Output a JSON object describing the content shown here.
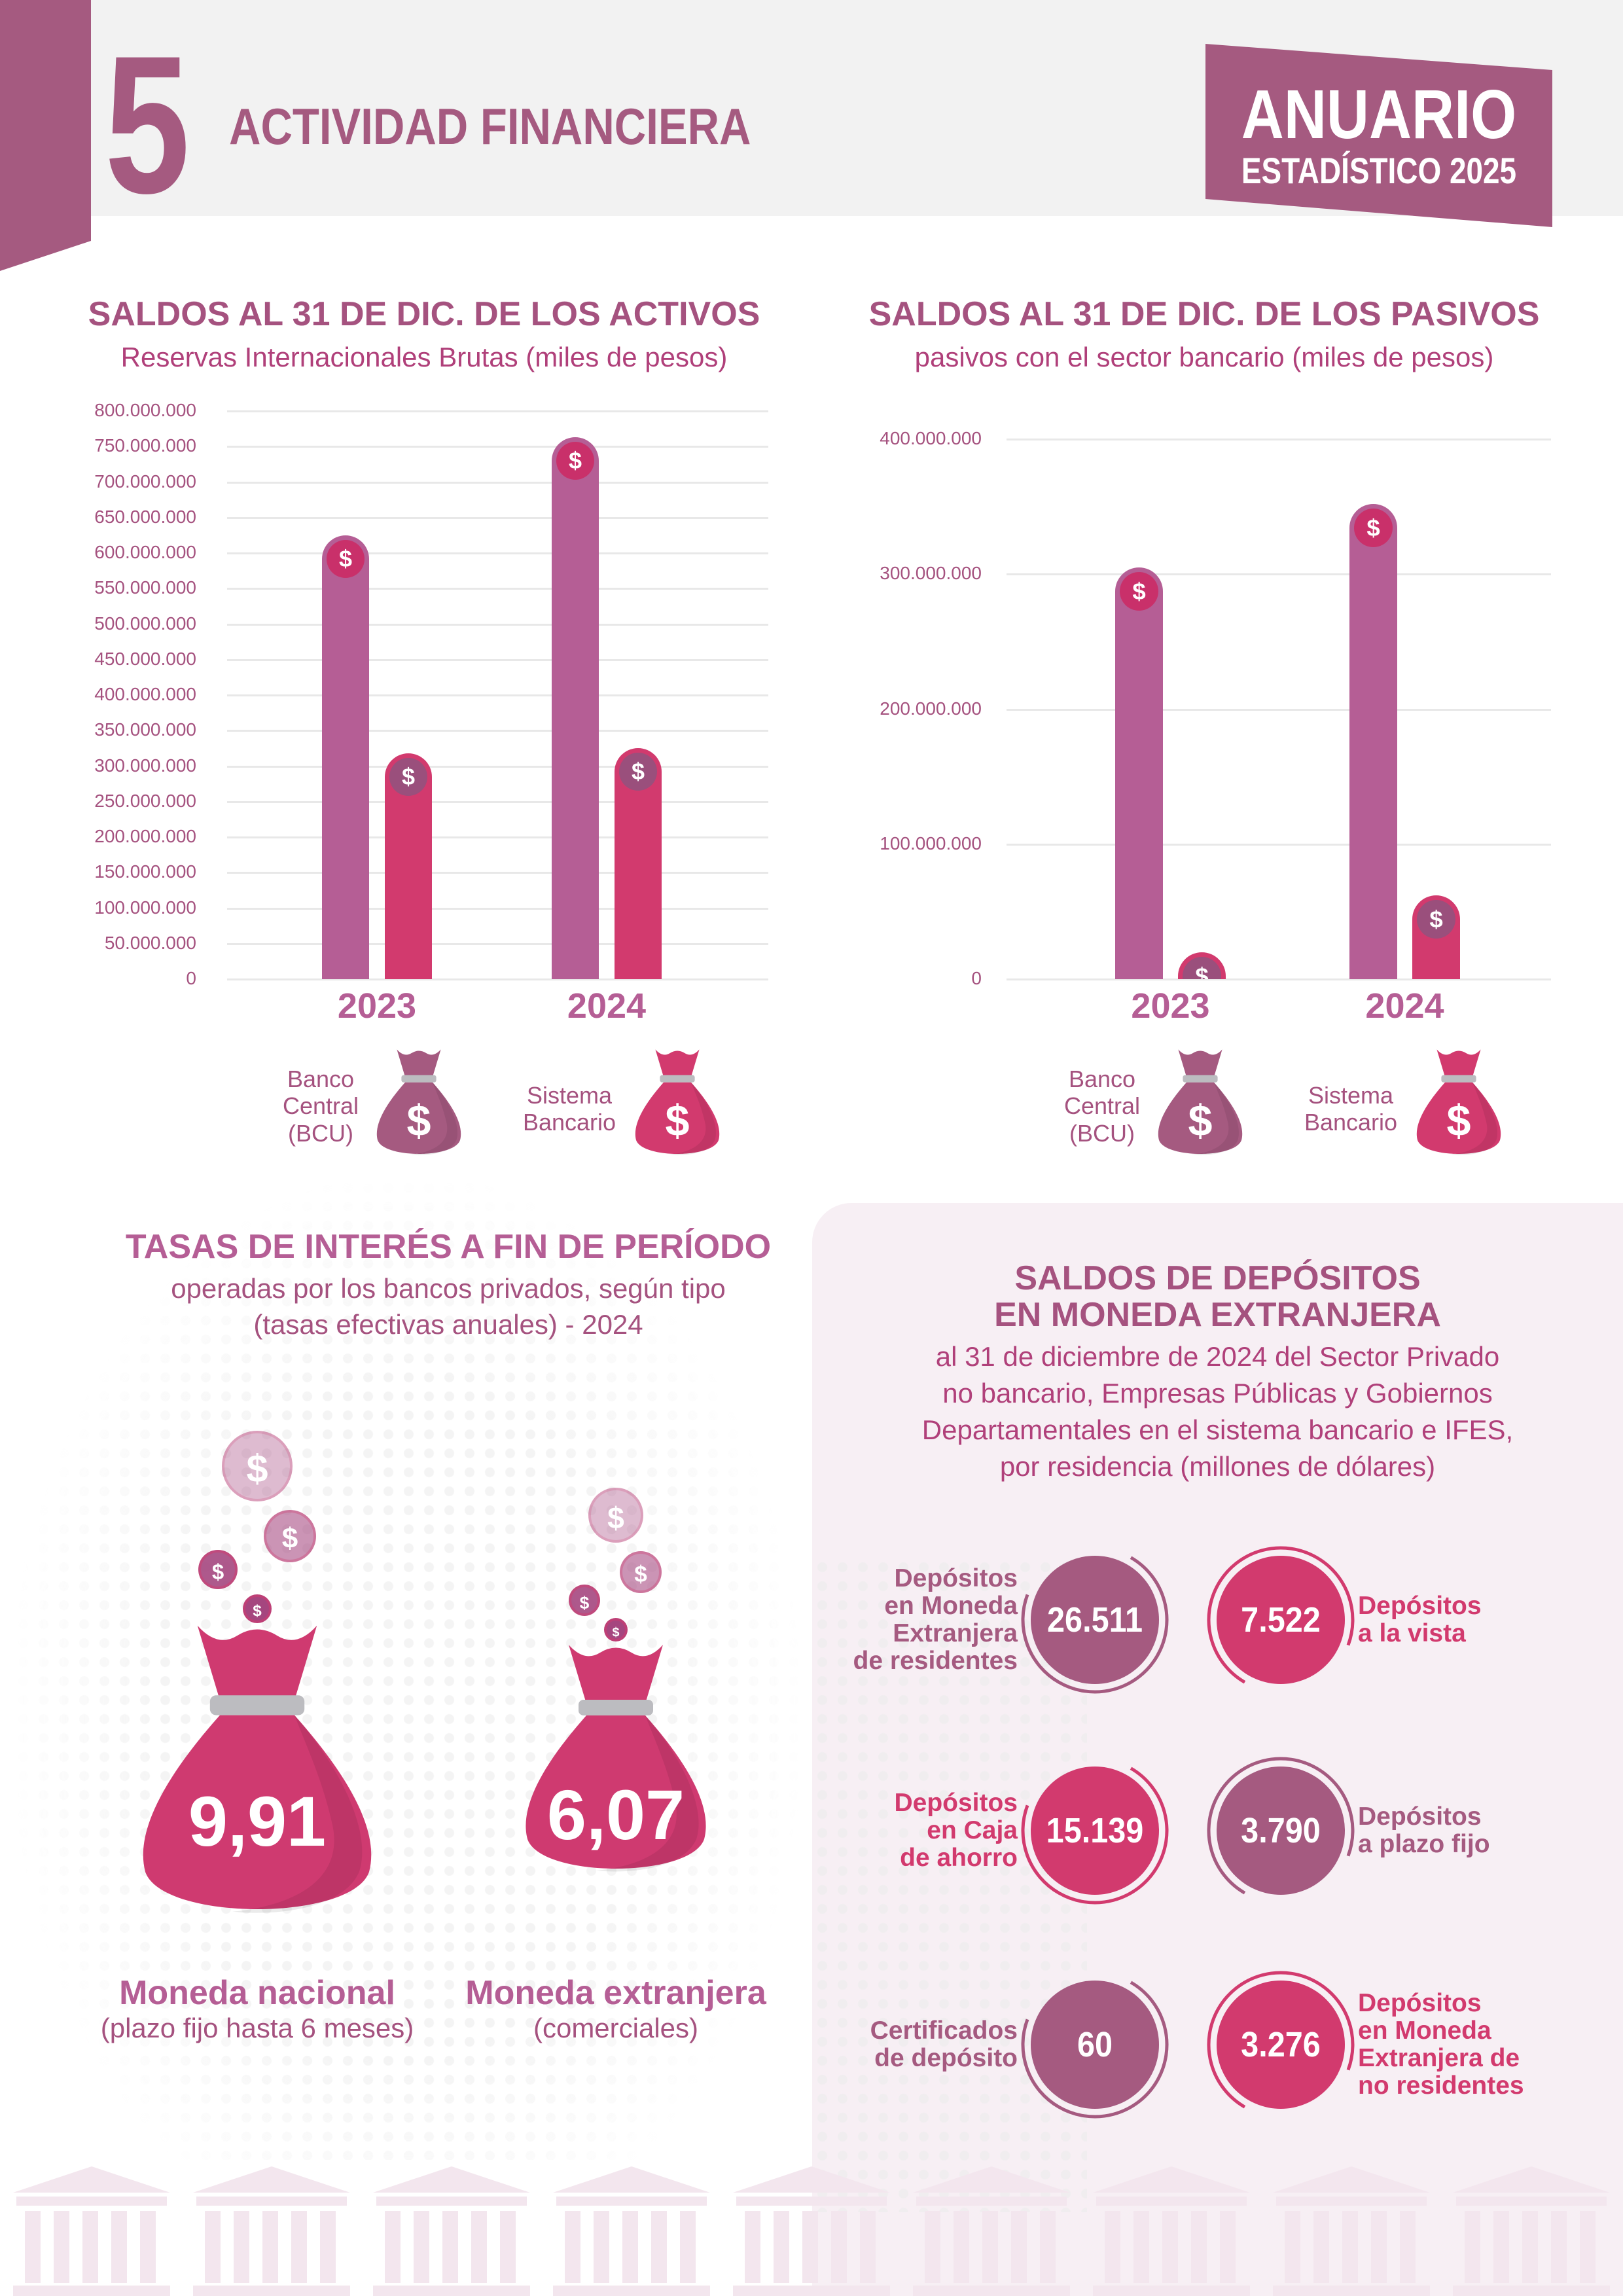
{
  "header": {
    "chapter_number": "5",
    "chapter_title": "ACTIVIDAD FINANCIERA",
    "badge_line1": "ANUARIO",
    "badge_line2": "ESTADÍSTICO 2025"
  },
  "colors": {
    "brand_purple": "#a55a80",
    "bcu_bar": "#b55e95",
    "sistema_bar": "#d23a6e",
    "panel_bg": "#f7eff4"
  },
  "legend": {
    "bcu": [
      "Banco",
      "Central",
      "(BCU)"
    ],
    "sistema": [
      "Sistema",
      "Bancario"
    ],
    "icon": "money-bag-icon"
  },
  "chart_data": [
    {
      "type": "bar",
      "title": "SALDOS AL 31 DE DIC. DE LOS ACTIVOS",
      "subtitle": "Reservas Internacionales Brutas (miles de pesos)",
      "categories": [
        "2023",
        "2024"
      ],
      "series": [
        {
          "name": "Banco Central (BCU)",
          "values": [
            625000000,
            763000000
          ],
          "color": "#b55e95"
        },
        {
          "name": "Sistema Bancario",
          "values": [
            318000000,
            325000000
          ],
          "color": "#d23a6e"
        }
      ],
      "ylim": [
        0,
        800000000
      ],
      "yticks": [
        "0",
        "50.000.000",
        "100.000.000",
        "150.000.000",
        "200.000.000",
        "250.000.000",
        "300.000.000",
        "350.000.000",
        "400.000.000",
        "450.000.000",
        "500.000.000",
        "550.000.000",
        "600.000.000",
        "650.000.000",
        "700.000.000",
        "750.000.000",
        "800.000.000"
      ],
      "grid": true,
      "legend": "bottom"
    },
    {
      "type": "bar",
      "title": "SALDOS AL 31 DE DIC. DE LOS PASIVOS",
      "subtitle": "pasivos con el sector bancario (miles de pesos)",
      "categories": [
        "2023",
        "2024"
      ],
      "series": [
        {
          "name": "Banco Central (BCU)",
          "values": [
            305000000,
            352000000
          ],
          "color": "#b55e95"
        },
        {
          "name": "Sistema Bancario",
          "values": [
            20000000,
            62000000
          ],
          "color": "#d23a6e"
        }
      ],
      "ylim": [
        0,
        400000000
      ],
      "yticks": [
        "0",
        "100.000.000",
        "200.000.000",
        "300.000.000",
        "400.000.000"
      ],
      "grid": true,
      "legend": "bottom"
    }
  ],
  "rates": {
    "title": "TASAS DE INTERÉS A FIN DE PERÍODO",
    "subtitle": [
      "operadas por los bancos privados, según tipo",
      "(tasas efectivas anuales) - 2024"
    ],
    "items": [
      {
        "value": "9,91",
        "label": "Moneda nacional",
        "sublabel": "(plazo fijo hasta 6 meses)"
      },
      {
        "value": "6,07",
        "label": "Moneda extranjera",
        "sublabel": "(comerciales)"
      }
    ]
  },
  "deposits": {
    "title": [
      "SALDOS DE DEPÓSITOS",
      "EN MONEDA EXTRANJERA"
    ],
    "subtitle": [
      "al 31 de diciembre de 2024 del Sector Privado",
      "no bancario, Empresas Públicas y Gobiernos",
      "Departamentales en el sistema bancario e IFES,",
      "por residencia (millones de dólares)"
    ],
    "items": [
      {
        "value": "26.511",
        "label": [
          "Depósitos",
          "en Moneda",
          "Extranjera",
          "de residentes"
        ],
        "color": "#a55a80"
      },
      {
        "value": "7.522",
        "label": [
          "Depósitos",
          "a la vista"
        ],
        "color": "#d23a6e"
      },
      {
        "value": "15.139",
        "label": [
          "Depósitos",
          "en Caja",
          "de ahorro"
        ],
        "color": "#d23a6e"
      },
      {
        "value": "3.790",
        "label": [
          "Depósitos",
          "a plazo fijo"
        ],
        "color": "#a55a80"
      },
      {
        "value": "60",
        "label": [
          "Certificados",
          "de depósito"
        ],
        "color": "#a55a80"
      },
      {
        "value": "3.276",
        "label": [
          "Depósitos",
          "en Moneda",
          "Extranjera de",
          "no residentes"
        ],
        "color": "#d23a6e"
      }
    ]
  }
}
